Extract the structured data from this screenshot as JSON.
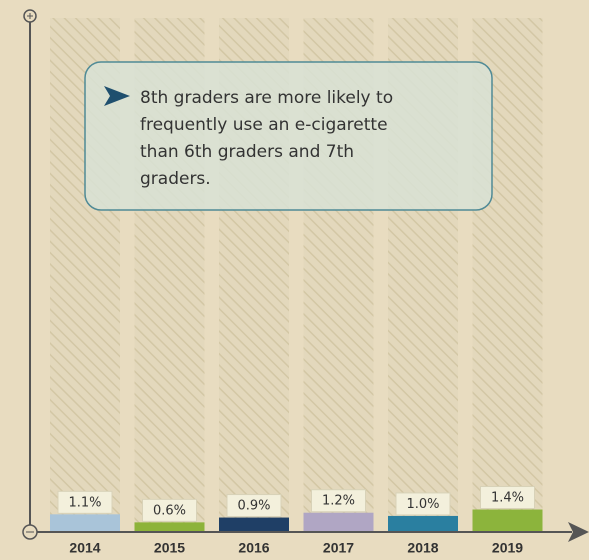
{
  "chart_data": {
    "type": "bar",
    "annotation": [
      "8th graders are more likely to",
      "frequently use an e-cigarette",
      "than 6th graders and 7th",
      "graders."
    ],
    "categories": [
      "2014",
      "2015",
      "2016",
      "2017",
      "2018",
      "2019"
    ],
    "values": [
      1.1,
      0.6,
      0.9,
      1.2,
      1.0,
      1.4
    ],
    "value_labels": [
      "1.1%",
      "0.6%",
      "0.9%",
      "1.2%",
      "1.0%",
      "1.4%"
    ],
    "colors": [
      "#a9c4d9",
      "#8db33a",
      "#1f3f66",
      "#b0a6c4",
      "#2a7fa0",
      "#8cb43c"
    ],
    "ylim": [
      0,
      32
    ]
  }
}
